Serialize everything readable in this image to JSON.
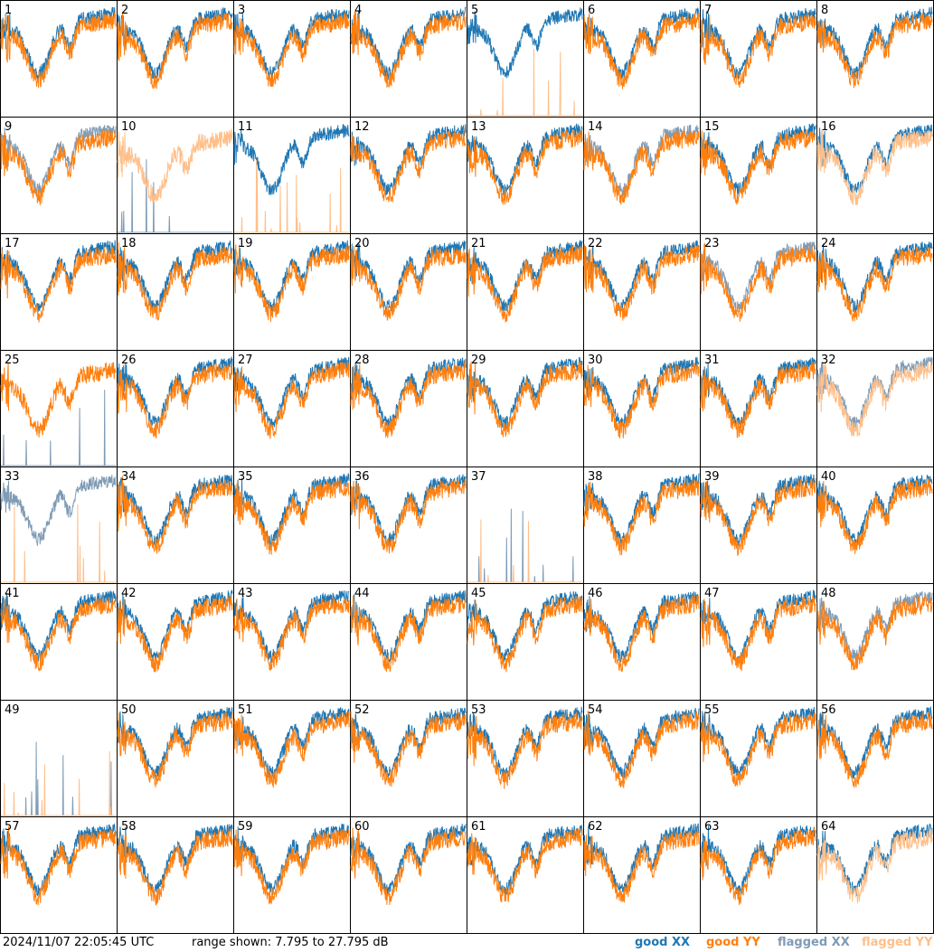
{
  "footer": {
    "timestamp": "2024/11/07 22:05:45 UTC",
    "range_text": "range shown: 7.795 to 27.795 dB"
  },
  "legend": [
    {
      "label": "good XX",
      "color": "#1f77b4"
    },
    {
      "label": "good YY",
      "color": "#ff7f0e"
    },
    {
      "label": "flagged XX",
      "color": "#7f9bb5"
    },
    {
      "label": "flagged YY",
      "color": "#ffbf8a"
    }
  ],
  "chart_data": {
    "type": "line",
    "layout": "small-multiples 8x8",
    "y_range_db": [
      7.795,
      27.795
    ],
    "series_names": [
      "good XX",
      "good YY",
      "flagged XX",
      "flagged YY"
    ],
    "panels": [
      {
        "id": "1",
        "xx": "good",
        "yy": "good"
      },
      {
        "id": "2",
        "xx": "good",
        "yy": "good"
      },
      {
        "id": "3",
        "xx": "good",
        "yy": "good"
      },
      {
        "id": "4",
        "xx": "good",
        "yy": "good"
      },
      {
        "id": "5",
        "xx": "good",
        "yy": "flagged"
      },
      {
        "id": "6",
        "xx": "good",
        "yy": "good"
      },
      {
        "id": "7",
        "xx": "good",
        "yy": "good"
      },
      {
        "id": "8",
        "xx": "good",
        "yy": "good"
      },
      {
        "id": "9",
        "xx": "flagged",
        "yy": "good"
      },
      {
        "id": "10",
        "xx": "flagged",
        "yy": "flagged"
      },
      {
        "id": "11",
        "xx": "good",
        "yy": "flagged"
      },
      {
        "id": "12",
        "xx": "good",
        "yy": "good"
      },
      {
        "id": "13",
        "xx": "good",
        "yy": "good"
      },
      {
        "id": "14",
        "xx": "flagged",
        "yy": "good"
      },
      {
        "id": "15",
        "xx": "good",
        "yy": "good"
      },
      {
        "id": "16",
        "xx": "good",
        "yy": "flagged"
      },
      {
        "id": "17",
        "xx": "good",
        "yy": "good"
      },
      {
        "id": "18",
        "xx": "good",
        "yy": "good"
      },
      {
        "id": "19",
        "xx": "good",
        "yy": "good"
      },
      {
        "id": "20",
        "xx": "good",
        "yy": "good"
      },
      {
        "id": "21",
        "xx": "good",
        "yy": "good"
      },
      {
        "id": "22",
        "xx": "good",
        "yy": "good"
      },
      {
        "id": "23",
        "xx": "flagged",
        "yy": "good"
      },
      {
        "id": "24",
        "xx": "good",
        "yy": "good"
      },
      {
        "id": "25",
        "xx": "flagged",
        "yy": "good"
      },
      {
        "id": "26",
        "xx": "good",
        "yy": "good"
      },
      {
        "id": "27",
        "xx": "good",
        "yy": "good"
      },
      {
        "id": "28",
        "xx": "good",
        "yy": "good"
      },
      {
        "id": "29",
        "xx": "good",
        "yy": "good"
      },
      {
        "id": "30",
        "xx": "good",
        "yy": "good"
      },
      {
        "id": "31",
        "xx": "good",
        "yy": "good"
      },
      {
        "id": "32",
        "xx": "flagged",
        "yy": "flagged"
      },
      {
        "id": "33",
        "xx": "flagged",
        "yy": "flagged"
      },
      {
        "id": "34",
        "xx": "good",
        "yy": "good"
      },
      {
        "id": "35",
        "xx": "good",
        "yy": "good"
      },
      {
        "id": "36",
        "xx": "good",
        "yy": "good"
      },
      {
        "id": "37",
        "xx": "flagged",
        "yy": "flagged"
      },
      {
        "id": "38",
        "xx": "good",
        "yy": "good"
      },
      {
        "id": "39",
        "xx": "good",
        "yy": "good"
      },
      {
        "id": "40",
        "xx": "good",
        "yy": "good"
      },
      {
        "id": "41",
        "xx": "good",
        "yy": "good"
      },
      {
        "id": "42",
        "xx": "good",
        "yy": "good"
      },
      {
        "id": "43",
        "xx": "good",
        "yy": "good"
      },
      {
        "id": "44",
        "xx": "good",
        "yy": "good"
      },
      {
        "id": "45",
        "xx": "good",
        "yy": "good"
      },
      {
        "id": "46",
        "xx": "good",
        "yy": "good"
      },
      {
        "id": "47",
        "xx": "good",
        "yy": "good"
      },
      {
        "id": "48",
        "xx": "flagged",
        "yy": "good"
      },
      {
        "id": "49",
        "xx": "flagged",
        "yy": "flagged"
      },
      {
        "id": "50",
        "xx": "good",
        "yy": "good"
      },
      {
        "id": "51",
        "xx": "good",
        "yy": "good"
      },
      {
        "id": "52",
        "xx": "good",
        "yy": "good"
      },
      {
        "id": "53",
        "xx": "good",
        "yy": "good"
      },
      {
        "id": "54",
        "xx": "good",
        "yy": "good"
      },
      {
        "id": "55",
        "xx": "good",
        "yy": "good"
      },
      {
        "id": "56",
        "xx": "good",
        "yy": "good"
      },
      {
        "id": "57",
        "xx": "good",
        "yy": "good"
      },
      {
        "id": "58",
        "xx": "good",
        "yy": "good"
      },
      {
        "id": "59",
        "xx": "good",
        "yy": "good"
      },
      {
        "id": "60",
        "xx": "good",
        "yy": "good"
      },
      {
        "id": "61",
        "xx": "good",
        "yy": "good"
      },
      {
        "id": "62",
        "xx": "good",
        "yy": "good"
      },
      {
        "id": "63",
        "xx": "good",
        "yy": "good"
      },
      {
        "id": "64",
        "xx": "good",
        "yy": "flagged"
      }
    ]
  }
}
